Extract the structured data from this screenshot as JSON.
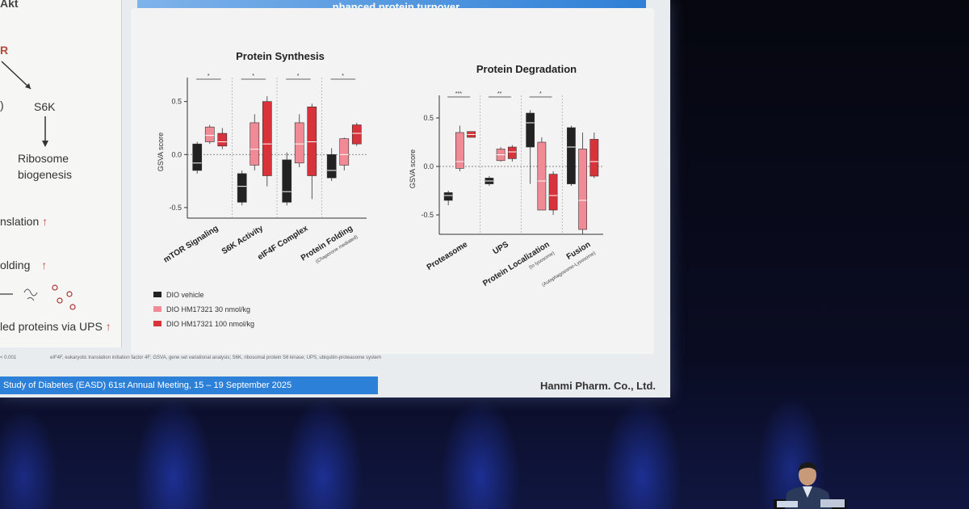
{
  "slide": {
    "top_bar_title": "...nhanced protein turnover",
    "left_panel": {
      "akt": "Akt",
      "r_label": "R",
      "s6k": "S6K",
      "ribosome": "Ribosome",
      "biogenesis": "biogenesis",
      "translation": "nslation",
      "folding": "olding",
      "ups": "led proteins via UPS",
      "up_arrow": "↑"
    },
    "footnote_left": "< 0.001",
    "footnote": "eIF4F, eukaryotic translation initiation factor 4F; GSVA, gene set variational analysis; S6K, ribosomal protein S6 kinase; UPS, ubiquitin-proteasome system",
    "conference": "Study of Diabetes (EASD) 61st Annual Meeting, 15 – 19 September 2025",
    "company": "Hanmi Pharm. Co., Ltd."
  },
  "chart_data": [
    {
      "type": "box",
      "title": "Protein Synthesis",
      "ylabel": "GSVA score",
      "yticks": [
        "0.5",
        "0.0",
        "-0.5"
      ],
      "ylim": [
        -0.6,
        0.65
      ],
      "categories": [
        "mTOR Signaling",
        "S6K Activity",
        "eIF4F Complex",
        "Protein Folding"
      ],
      "category_sublabels": [
        "",
        "",
        "",
        "(Chaperone mediated)"
      ],
      "series": [
        {
          "name": "DIO vehicle",
          "color": "#222222",
          "boxes": [
            {
              "min": -0.18,
              "q1": -0.15,
              "median": -0.08,
              "q3": 0.1,
              "max": 0.12
            },
            {
              "min": -0.48,
              "q1": -0.45,
              "median": -0.3,
              "q3": -0.18,
              "max": -0.15
            },
            {
              "min": -0.48,
              "q1": -0.45,
              "median": -0.35,
              "q3": -0.05,
              "max": 0.02
            },
            {
              "min": -0.25,
              "q1": -0.22,
              "median": -0.15,
              "q3": 0.0,
              "max": 0.06
            }
          ]
        },
        {
          "name": "DIO HM17321 30 nmol/kg",
          "color": "#f08a95",
          "boxes": [
            {
              "min": 0.1,
              "q1": 0.12,
              "median": 0.18,
              "q3": 0.26,
              "max": 0.28
            },
            {
              "min": -0.15,
              "q1": -0.1,
              "median": 0.05,
              "q3": 0.3,
              "max": 0.38
            },
            {
              "min": -0.12,
              "q1": -0.08,
              "median": 0.1,
              "q3": 0.3,
              "max": 0.38
            },
            {
              "min": -0.15,
              "q1": -0.1,
              "median": 0.0,
              "q3": 0.15,
              "max": 0.16
            }
          ]
        },
        {
          "name": "DIO HM17321 100 nmol/kg",
          "color": "#d8323a",
          "boxes": [
            {
              "min": 0.05,
              "q1": 0.08,
              "median": 0.12,
              "q3": 0.2,
              "max": 0.25
            },
            {
              "min": -0.3,
              "q1": -0.2,
              "median": 0.1,
              "q3": 0.5,
              "max": 0.55
            },
            {
              "min": -0.42,
              "q1": -0.2,
              "median": 0.12,
              "q3": 0.45,
              "max": 0.48
            },
            {
              "min": 0.08,
              "q1": 0.1,
              "median": 0.2,
              "q3": 0.28,
              "max": 0.3
            }
          ]
        }
      ],
      "significance": [
        "*",
        "*",
        "*",
        "*"
      ]
    },
    {
      "type": "box",
      "title": "Protein Degradation",
      "ylabel": "GSVA score",
      "yticks": [
        "0.5",
        "0.0",
        "-0.5"
      ],
      "ylim": [
        -0.7,
        0.65
      ],
      "categories": [
        "Proteasome",
        "UPS",
        "Protein Localization",
        "Fusion"
      ],
      "category_sublabels": [
        "",
        "",
        "(to lysosome)",
        "(Autophagosome-Lysosome)"
      ],
      "series": [
        {
          "name": "DIO vehicle",
          "color": "#222222",
          "boxes": [
            {
              "min": -0.4,
              "q1": -0.35,
              "median": -0.3,
              "q3": -0.27,
              "max": -0.25
            },
            {
              "min": -0.2,
              "q1": -0.18,
              "median": -0.15,
              "q3": -0.12,
              "max": -0.1
            },
            {
              "min": -0.18,
              "q1": 0.2,
              "median": 0.45,
              "q3": 0.55,
              "max": 0.58
            },
            {
              "min": -0.2,
              "q1": -0.18,
              "median": 0.2,
              "q3": 0.4,
              "max": 0.42
            }
          ]
        },
        {
          "name": "DIO HM17321 30 nmol/kg",
          "color": "#f08a95",
          "boxes": [
            {
              "min": -0.05,
              "q1": -0.02,
              "median": 0.05,
              "q3": 0.35,
              "max": 0.42
            },
            {
              "min": 0.05,
              "q1": 0.06,
              "median": 0.12,
              "q3": 0.18,
              "max": 0.2
            },
            {
              "min": -0.45,
              "q1": -0.45,
              "median": -0.15,
              "q3": 0.25,
              "max": 0.3
            },
            {
              "min": -0.7,
              "q1": -0.65,
              "median": -0.35,
              "q3": 0.18,
              "max": 0.35
            }
          ]
        },
        {
          "name": "DIO HM17321 100 nmol/kg",
          "color": "#d8323a",
          "boxes": [
            {
              "min": 0.3,
              "q1": 0.3,
              "median": 0.33,
              "q3": 0.36,
              "max": 0.36
            },
            {
              "min": 0.05,
              "q1": 0.08,
              "median": 0.15,
              "q3": 0.2,
              "max": 0.22
            },
            {
              "min": -0.5,
              "q1": -0.45,
              "median": -0.3,
              "q3": -0.08,
              "max": -0.05
            },
            {
              "min": -0.12,
              "q1": -0.1,
              "median": 0.05,
              "q3": 0.28,
              "max": 0.35
            }
          ]
        }
      ],
      "significance": [
        "***",
        "**",
        "*",
        ""
      ]
    }
  ],
  "legend": [
    {
      "label": "DIO vehicle",
      "color": "#222222"
    },
    {
      "label": "DIO HM17321 30 nmol/kg",
      "color": "#f08a95"
    },
    {
      "label": "DIO HM17321 100 nmol/kg",
      "color": "#d8323a"
    }
  ]
}
